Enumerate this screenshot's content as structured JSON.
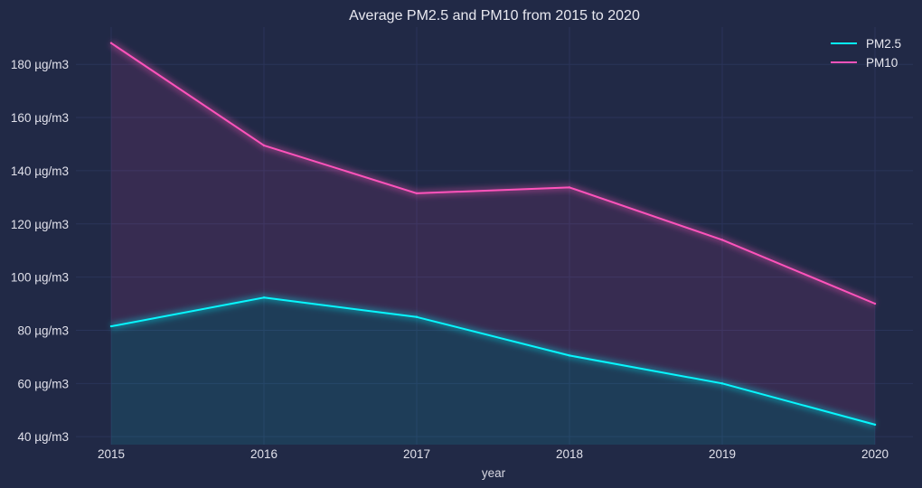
{
  "chart_data": {
    "type": "area",
    "title": "Average PM2.5 and PM10 from 2015 to 2020",
    "xlabel": "year",
    "ylabel": "",
    "x": [
      "2015",
      "2016",
      "2017",
      "2018",
      "2019",
      "2020"
    ],
    "y_ticks": [
      40,
      60,
      80,
      100,
      120,
      140,
      160,
      180
    ],
    "y_tick_labels": [
      "40 µg/m3",
      "60 µg/m3",
      "80 µg/m3",
      "100 µg/m3",
      "120 µg/m3",
      "140 µg/m3",
      "160 µg/m3",
      "180 µg/m3"
    ],
    "ylim": [
      37,
      194
    ],
    "grid": true,
    "legend_position": "top-right",
    "series": [
      {
        "name": "PM2.5",
        "color": "#08F7FE",
        "values": [
          81.5,
          92.3,
          85.0,
          70.5,
          60.0,
          44.5
        ]
      },
      {
        "name": "PM10",
        "color": "#FE53BB",
        "values": [
          188.0,
          149.5,
          131.5,
          133.7,
          114.0,
          90.0
        ]
      }
    ]
  }
}
